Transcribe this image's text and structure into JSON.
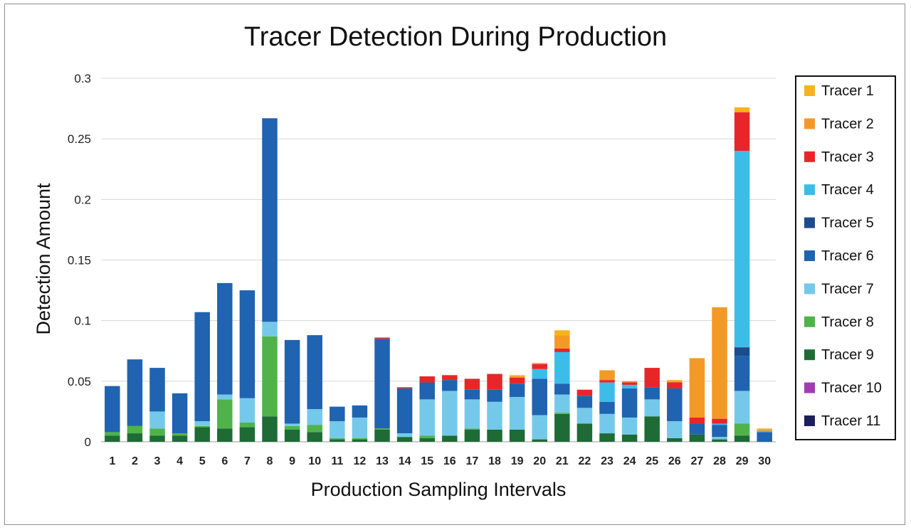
{
  "chart_data": {
    "type": "bar",
    "stacked": true,
    "title": "Tracer Detection During Production",
    "xlabel": "Production Sampling Intervals",
    "ylabel": "Detection Amount",
    "ylim": [
      0,
      0.3
    ],
    "yticks": [
      "0",
      "0.05",
      "0.1",
      "0.15",
      "0.2",
      "0.25",
      "0.3"
    ],
    "grid": true,
    "legend_position": "right",
    "categories": [
      "1",
      "2",
      "3",
      "4",
      "5",
      "6",
      "7",
      "8",
      "9",
      "10",
      "11",
      "12",
      "13",
      "14",
      "15",
      "16",
      "17",
      "18",
      "19",
      "20",
      "21",
      "22",
      "23",
      "24",
      "25",
      "26",
      "27",
      "28",
      "29",
      "30"
    ],
    "series": [
      {
        "name": "Tracer 9",
        "color": "#1e6b35",
        "values": [
          0.005,
          0.007,
          0.005,
          0.005,
          0.012,
          0.011,
          0.012,
          0.021,
          0.01,
          0.008,
          0.002,
          0.002,
          0.01,
          0.004,
          0.003,
          0.005,
          0.01,
          0.01,
          0.01,
          0.002,
          0.023,
          0.015,
          0.007,
          0.006,
          0.021,
          0.003,
          0.006,
          0.002,
          0.005,
          0
        ]
      },
      {
        "name": "Tracer 8",
        "color": "#4fb34a",
        "values": [
          0.003,
          0.006,
          0.006,
          0.002,
          0.001,
          0.024,
          0.004,
          0.066,
          0.003,
          0.006,
          0.001,
          0.001,
          0.001,
          0,
          0.002,
          0,
          0.001,
          0,
          0,
          0,
          0.001,
          0,
          0,
          0,
          0,
          0,
          0,
          0,
          0.01,
          0
        ]
      },
      {
        "name": "Tracer 7",
        "color": "#74c9ea",
        "values": [
          0,
          0,
          0.014,
          0,
          0.004,
          0.004,
          0.02,
          0.012,
          0.002,
          0.013,
          0.014,
          0.017,
          0,
          0.003,
          0.03,
          0.037,
          0.024,
          0.023,
          0.027,
          0.02,
          0.015,
          0.013,
          0.016,
          0.014,
          0.014,
          0.014,
          0,
          0.002,
          0.027,
          0
        ]
      },
      {
        "name": "Tracer 6",
        "color": "#1f63b1",
        "values": [
          0.038,
          0.055,
          0.036,
          0.033,
          0.09,
          0.092,
          0.089,
          0.168,
          0.069,
          0.061,
          0.012,
          0.01,
          0.074,
          0.037,
          0.014,
          0.009,
          0.008,
          0.01,
          0.011,
          0.03,
          0.009,
          0.01,
          0.01,
          0.024,
          0.01,
          0.027,
          0.009,
          0.01,
          0.029,
          0.008
        ]
      },
      {
        "name": "Tracer 5",
        "color": "#1e4b8c",
        "values": [
          0,
          0,
          0,
          0,
          0,
          0,
          0,
          0,
          0,
          0,
          0,
          0,
          0,
          0,
          0,
          0,
          0,
          0,
          0,
          0,
          0,
          0,
          0,
          0,
          0,
          0,
          0,
          0,
          0.007,
          0
        ]
      },
      {
        "name": "Tracer 4",
        "color": "#3cbde8",
        "values": [
          0,
          0,
          0,
          0,
          0,
          0,
          0,
          0,
          0,
          0,
          0,
          0,
          0,
          0,
          0,
          0,
          0,
          0,
          0,
          0.008,
          0.026,
          0,
          0.016,
          0.003,
          0,
          0,
          0,
          0.001,
          0.162,
          0.001
        ]
      },
      {
        "name": "Tracer 3",
        "color": "#e8262a",
        "values": [
          0,
          0,
          0,
          0,
          0,
          0,
          0,
          0,
          0,
          0,
          0,
          0,
          0.001,
          0.001,
          0.005,
          0.004,
          0.009,
          0.013,
          0.005,
          0.004,
          0.003,
          0.005,
          0.002,
          0.002,
          0.016,
          0.005,
          0.005,
          0.004,
          0.032,
          0
        ]
      },
      {
        "name": "Tracer 2",
        "color": "#f39a26",
        "values": [
          0,
          0,
          0,
          0,
          0,
          0,
          0,
          0,
          0,
          0,
          0,
          0,
          0,
          0,
          0,
          0,
          0,
          0,
          0.001,
          0.001,
          0.011,
          0,
          0.008,
          0.001,
          0,
          0.001,
          0.049,
          0.092,
          0,
          0.001
        ]
      },
      {
        "name": "Tracer 1",
        "color": "#f7b31d",
        "values": [
          0,
          0,
          0,
          0,
          0,
          0,
          0,
          0,
          0,
          0,
          0,
          0,
          0,
          0,
          0,
          0,
          0,
          0,
          0.001,
          0,
          0.004,
          0,
          0,
          0,
          0,
          0.001,
          0,
          0,
          0.004,
          0.001
        ]
      },
      {
        "name": "Tracer 10",
        "color": "#a23bb3",
        "values": [
          0,
          0,
          0,
          0,
          0,
          0,
          0,
          0,
          0,
          0,
          0,
          0,
          0,
          0,
          0,
          0,
          0,
          0,
          0,
          0,
          0,
          0,
          0,
          0,
          0,
          0,
          0,
          0,
          0,
          0
        ]
      },
      {
        "name": "Tracer 11",
        "color": "#1d1f5a",
        "values": [
          0,
          0,
          0,
          0,
          0,
          0,
          0,
          0,
          0,
          0,
          0,
          0,
          0,
          0,
          0,
          0,
          0,
          0,
          0,
          0,
          0,
          0,
          0,
          0,
          0,
          0,
          0,
          0,
          0,
          0
        ]
      }
    ],
    "legend": [
      {
        "name": "Tracer 1",
        "color": "#f7b31d"
      },
      {
        "name": "Tracer 2",
        "color": "#f39a26"
      },
      {
        "name": "Tracer 3",
        "color": "#e8262a"
      },
      {
        "name": "Tracer 4",
        "color": "#3cbde8"
      },
      {
        "name": "Tracer 5",
        "color": "#1e4b8c"
      },
      {
        "name": "Tracer 6",
        "color": "#1f63b1"
      },
      {
        "name": "Tracer 7",
        "color": "#74c9ea"
      },
      {
        "name": "Tracer 8",
        "color": "#4fb34a"
      },
      {
        "name": "Tracer 9",
        "color": "#1e6b35"
      },
      {
        "name": "Tracer 10",
        "color": "#a23bb3"
      },
      {
        "name": "Tracer 11",
        "color": "#1d1f5a"
      }
    ]
  }
}
